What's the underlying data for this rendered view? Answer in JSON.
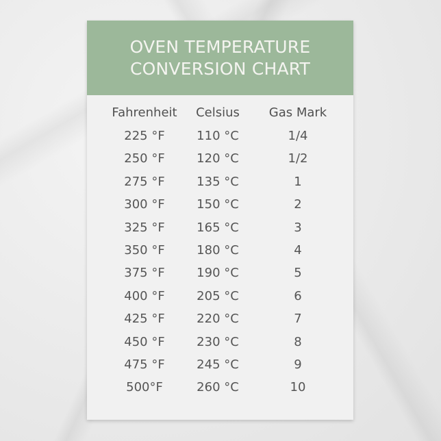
{
  "title": {
    "line1": "OVEN TEMPERATURE",
    "line2": "CONVERSION CHART"
  },
  "colors": {
    "header_bg": "#9cb89a",
    "card_bg": "#f1f1f1",
    "text": "#555555"
  },
  "columns": [
    "Fahrenheit",
    "Celsius",
    "Gas Mark"
  ],
  "rows": [
    [
      "225 °F",
      "110 °C",
      "1/4"
    ],
    [
      "250 °F",
      "120 °C",
      "1/2"
    ],
    [
      "275 °F",
      "135 °C",
      "1"
    ],
    [
      "300 °F",
      "150 °C",
      "2"
    ],
    [
      "325 °F",
      "165 °C",
      "3"
    ],
    [
      "350 °F",
      "180 °C",
      "4"
    ],
    [
      "375 °F",
      "190 °C",
      "5"
    ],
    [
      "400 °F",
      "205 °C",
      "6"
    ],
    [
      "425 °F",
      "220 °C",
      "7"
    ],
    [
      "450 °F",
      "230 °C",
      "8"
    ],
    [
      "475 °F",
      "245 °C",
      "9"
    ],
    [
      "500°F",
      "260 °C",
      "10"
    ]
  ]
}
